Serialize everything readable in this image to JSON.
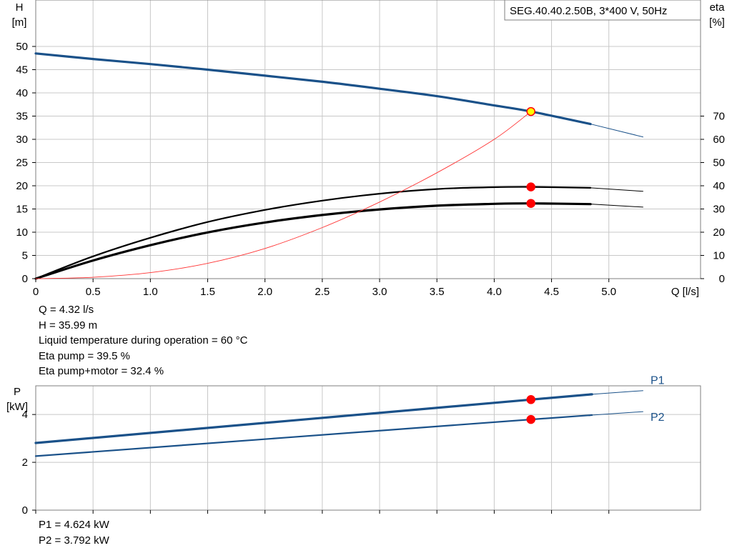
{
  "chart_data": [
    {
      "type": "line",
      "title": "SEG.40.40.2.50B, 3*400 V, 50Hz",
      "xlabel": "Q [l/s]",
      "ylabel": [
        "H",
        "[m]"
      ],
      "ylabel_right": [
        "eta",
        "[%]"
      ],
      "xlim": [
        0,
        5.8
      ],
      "ylim": [
        0,
        60
      ],
      "ylim_right": [
        0,
        120
      ],
      "x_ticks": [
        0,
        0.5,
        1.0,
        1.5,
        2.0,
        2.5,
        3.0,
        3.5,
        4.0,
        4.5,
        5.0
      ],
      "x_tick_labels": [
        "0",
        "0.5",
        "1.0",
        "1.5",
        "2.0",
        "2.5",
        "3.0",
        "3.5",
        "4.0",
        "4.5",
        "5.0"
      ],
      "y_ticks": [
        0,
        5,
        10,
        15,
        20,
        25,
        30,
        35,
        40,
        45,
        50
      ],
      "y_tick_labels": [
        "0",
        "5",
        "10",
        "15",
        "20",
        "25",
        "30",
        "35",
        "40",
        "45",
        "50"
      ],
      "y_right_ticks": [
        0,
        10,
        20,
        30,
        40,
        50,
        60,
        70
      ],
      "y_right_tick_labels": [
        "0",
        "10",
        "20",
        "30",
        "40",
        "50",
        "60",
        "70"
      ],
      "grid": true,
      "series": [
        {
          "axis": "left",
          "color": "#1a5189",
          "style": "thick",
          "x": [
            0,
            0.5,
            1.0,
            1.5,
            2.0,
            2.5,
            3.0,
            3.5,
            4.0,
            4.32,
            4.84
          ],
          "y": [
            48.5,
            47.3,
            46.2,
            45.0,
            43.7,
            42.4,
            40.9,
            39.3,
            37.3,
            35.99,
            33.3
          ],
          "ext_x": [
            4.84,
            5.3
          ],
          "ext_y": [
            33.3,
            30.5
          ]
        },
        {
          "axis": "right",
          "color": "#000000",
          "style": "medium",
          "x": [
            0,
            0.5,
            1.0,
            1.5,
            2.0,
            2.5,
            3.0,
            3.5,
            4.0,
            4.32,
            4.84
          ],
          "y": [
            0,
            9.6,
            17.6,
            24.4,
            29.6,
            33.6,
            36.6,
            38.6,
            39.4,
            39.5,
            39.1
          ],
          "ext_x": [
            4.84,
            5.3
          ],
          "ext_y": [
            39.1,
            37.6
          ]
        },
        {
          "axis": "right",
          "color": "#000000",
          "style": "thick",
          "x": [
            0,
            0.5,
            1.0,
            1.5,
            2.0,
            2.5,
            3.0,
            3.5,
            4.0,
            4.32,
            4.84
          ],
          "y": [
            0,
            7.8,
            14.4,
            19.9,
            24.2,
            27.4,
            29.8,
            31.4,
            32.2,
            32.4,
            32.1
          ],
          "ext_x": [
            4.84,
            5.3
          ],
          "ext_y": [
            32.1,
            30.8
          ]
        },
        {
          "axis": "left",
          "color": "#ff3333",
          "style": "thin",
          "x": [
            0,
            0.5,
            1.0,
            1.5,
            2.0,
            2.5,
            3.0,
            3.5,
            4.0,
            4.32
          ],
          "y": [
            0,
            0.3,
            1.3,
            3.3,
            6.5,
            11.0,
            16.5,
            22.8,
            30.0,
            35.99
          ]
        }
      ],
      "points": [
        {
          "axis": "left",
          "x": 4.32,
          "y": 35.99,
          "fill": "#ffff00",
          "stroke": "#ff0000"
        },
        {
          "axis": "right",
          "x": 4.32,
          "y": 39.5,
          "fill": "#ff0000",
          "stroke": "#ff0000"
        },
        {
          "axis": "right",
          "x": 4.32,
          "y": 32.4,
          "fill": "#ff0000",
          "stroke": "#ff0000"
        }
      ]
    },
    {
      "type": "line",
      "title": "",
      "xlabel": "",
      "ylabel": [
        "P",
        "[kW]"
      ],
      "xlim": [
        0,
        5.8
      ],
      "ylim": [
        0,
        5.2
      ],
      "x_ticks": [
        0,
        0.5,
        1.0,
        1.5,
        2.0,
        2.5,
        3.0,
        3.5,
        4.0,
        4.5,
        5.0
      ],
      "y_ticks": [
        0,
        2,
        4
      ],
      "y_tick_labels": [
        "0",
        "2",
        "4"
      ],
      "grid": true,
      "series": [
        {
          "name": "P1",
          "color": "#1a5189",
          "style": "thick",
          "x": [
            0,
            4.32,
            4.84
          ],
          "y": [
            2.81,
            4.624,
            4.84
          ],
          "ext_x": [
            4.84,
            5.3
          ],
          "ext_y": [
            4.84,
            5.0
          ]
        },
        {
          "name": "P2",
          "color": "#1a5189",
          "style": "medium",
          "x": [
            0,
            4.32,
            4.84
          ],
          "y": [
            2.26,
            3.792,
            3.97
          ],
          "ext_x": [
            4.84,
            5.3
          ],
          "ext_y": [
            3.97,
            4.12
          ]
        }
      ],
      "points": [
        {
          "x": 4.32,
          "y": 4.624,
          "fill": "#ff0000",
          "stroke": "#ff0000"
        },
        {
          "x": 4.32,
          "y": 3.792,
          "fill": "#ff0000",
          "stroke": "#ff0000"
        }
      ]
    }
  ],
  "info_top": [
    "Q = 4.32 l/s",
    "H = 35.99 m",
    "Liquid temperature during operation = 60 °C",
    "Eta pump = 39.5 %",
    "Eta pump+motor = 32.4 %"
  ],
  "info_bottom": [
    "P1 = 4.624 kW",
    "P2 = 3.792 kW"
  ]
}
